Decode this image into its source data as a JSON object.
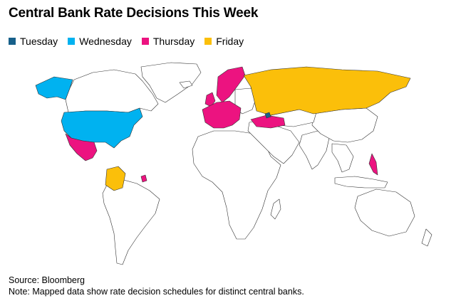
{
  "title": "Central Bank Rate Decisions This Week",
  "legend": [
    {
      "label": "Tuesday",
      "color": "#17608a"
    },
    {
      "label": "Wednesday",
      "color": "#00b2f0"
    },
    {
      "label": "Thursday",
      "color": "#ec1380"
    },
    {
      "label": "Friday",
      "color": "#fbbf0a"
    }
  ],
  "colors": {
    "land": "#ffffff",
    "border": "#333333"
  },
  "footer": {
    "source": "Source: Bloomberg",
    "note": "Note: Mapped data show rate decision schedules for distinct central banks."
  }
}
